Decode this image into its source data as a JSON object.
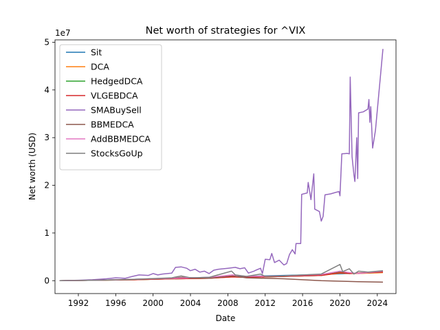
{
  "chart_data": {
    "type": "line",
    "title": "Net worth of strategies for ^VIX",
    "xlabel": "Date",
    "ylabel": "Net worth (USD)",
    "y_offset_label": "1e7",
    "xlim": [
      1989.5,
      2026.0
    ],
    "ylim": [
      -0.27,
      5.05
    ],
    "y_unit_multiplier": 10000000,
    "x_ticks": [
      1992,
      1996,
      2000,
      2004,
      2008,
      2012,
      2016,
      2020,
      2024
    ],
    "x_tick_labels": [
      "1992",
      "1996",
      "2000",
      "2004",
      "2008",
      "2012",
      "2016",
      "2020",
      "2024"
    ],
    "y_ticks": [
      0,
      1,
      2,
      3,
      4,
      5
    ],
    "y_tick_labels": [
      "0",
      "1",
      "2",
      "3",
      "4",
      "5"
    ],
    "grid": false,
    "legend_position": "upper-left",
    "series": [
      {
        "name": "Sit",
        "color": "#1f77b4",
        "points": [
          [
            1990.0,
            0.0
          ],
          [
            1994,
            0.01
          ],
          [
            1998,
            0.03
          ],
          [
            2002,
            0.05
          ],
          [
            2006,
            0.07
          ],
          [
            2010,
            0.09
          ],
          [
            2014,
            0.11
          ],
          [
            2018,
            0.13
          ],
          [
            2022,
            0.16
          ],
          [
            2024.6,
            0.18
          ]
        ]
      },
      {
        "name": "DCA",
        "color": "#ff7f0e",
        "points": [
          [
            1990.0,
            0.0
          ],
          [
            1994,
            0.01
          ],
          [
            1998,
            0.02
          ],
          [
            2002,
            0.04
          ],
          [
            2006,
            0.05
          ],
          [
            2008.5,
            0.08
          ],
          [
            2010,
            0.07
          ],
          [
            2014,
            0.09
          ],
          [
            2018,
            0.11
          ],
          [
            2020,
            0.16
          ],
          [
            2021,
            0.15
          ],
          [
            2022,
            0.15
          ],
          [
            2024.6,
            0.17
          ]
        ]
      },
      {
        "name": "HedgedDCA",
        "color": "#2ca02c",
        "points": [
          [
            1990.0,
            0.0
          ],
          [
            1994,
            0.01
          ],
          [
            1998,
            0.02
          ],
          [
            2002,
            0.04
          ],
          [
            2006,
            0.05
          ],
          [
            2008.5,
            0.09
          ],
          [
            2010,
            0.07
          ],
          [
            2014,
            0.09
          ],
          [
            2018,
            0.11
          ],
          [
            2020,
            0.18
          ],
          [
            2021,
            0.15
          ],
          [
            2022,
            0.16
          ],
          [
            2024.6,
            0.18
          ]
        ]
      },
      {
        "name": "VLGEBDCA",
        "color": "#d62728",
        "points": [
          [
            1990.0,
            0.0
          ],
          [
            1994,
            0.01
          ],
          [
            1998,
            0.02
          ],
          [
            2002,
            0.04
          ],
          [
            2006,
            0.05
          ],
          [
            2008.5,
            0.08
          ],
          [
            2010,
            0.07
          ],
          [
            2014,
            0.09
          ],
          [
            2018,
            0.11
          ],
          [
            2020,
            0.17
          ],
          [
            2021,
            0.15
          ],
          [
            2022,
            0.16
          ],
          [
            2024.6,
            0.18
          ]
        ]
      },
      {
        "name": "SMABuySell",
        "color": "#9467bd",
        "points": [
          [
            1990.0,
            0.0
          ],
          [
            1992.0,
            0.01
          ],
          [
            1993.5,
            0.02
          ],
          [
            1995.0,
            0.04
          ],
          [
            1996.0,
            0.06
          ],
          [
            1997.0,
            0.05
          ],
          [
            1997.8,
            0.09
          ],
          [
            1998.5,
            0.12
          ],
          [
            1999.5,
            0.11
          ],
          [
            2000.0,
            0.15
          ],
          [
            2000.5,
            0.12
          ],
          [
            2001.0,
            0.14
          ],
          [
            2002.0,
            0.16
          ],
          [
            2002.4,
            0.28
          ],
          [
            2003.0,
            0.29
          ],
          [
            2003.6,
            0.26
          ],
          [
            2004.0,
            0.21
          ],
          [
            2004.5,
            0.24
          ],
          [
            2005.0,
            0.18
          ],
          [
            2005.5,
            0.2
          ],
          [
            2006.0,
            0.15
          ],
          [
            2006.5,
            0.22
          ],
          [
            2007.0,
            0.24
          ],
          [
            2008.0,
            0.26
          ],
          [
            2008.8,
            0.28
          ],
          [
            2009.3,
            0.25
          ],
          [
            2009.8,
            0.27
          ],
          [
            2010.2,
            0.16
          ],
          [
            2010.8,
            0.2
          ],
          [
            2011.0,
            0.22
          ],
          [
            2011.5,
            0.26
          ],
          [
            2011.7,
            0.15
          ],
          [
            2012.0,
            0.45
          ],
          [
            2012.5,
            0.44
          ],
          [
            2012.7,
            0.57
          ],
          [
            2013.0,
            0.38
          ],
          [
            2013.5,
            0.43
          ],
          [
            2014.0,
            0.33
          ],
          [
            2014.3,
            0.36
          ],
          [
            2014.6,
            0.55
          ],
          [
            2014.9,
            0.65
          ],
          [
            2015.2,
            0.56
          ],
          [
            2015.3,
            0.78
          ],
          [
            2015.8,
            0.78
          ],
          [
            2015.9,
            1.81
          ],
          [
            2016.5,
            1.84
          ],
          [
            2016.6,
            2.06
          ],
          [
            2016.9,
            1.7
          ],
          [
            2017.2,
            2.24
          ],
          [
            2017.3,
            1.5
          ],
          [
            2017.8,
            1.45
          ],
          [
            2018.0,
            1.25
          ],
          [
            2018.2,
            1.35
          ],
          [
            2018.4,
            1.8
          ],
          [
            2019.0,
            1.82
          ],
          [
            2019.5,
            1.85
          ],
          [
            2019.9,
            1.87
          ],
          [
            2020.0,
            1.78
          ],
          [
            2020.2,
            2.66
          ],
          [
            2020.8,
            2.67
          ],
          [
            2021.0,
            2.66
          ],
          [
            2021.1,
            4.27
          ],
          [
            2021.3,
            2.6
          ],
          [
            2021.5,
            2.22
          ],
          [
            2021.6,
            2.08
          ],
          [
            2021.8,
            3.0
          ],
          [
            2021.9,
            2.14
          ],
          [
            2022.0,
            3.52
          ],
          [
            2022.5,
            3.54
          ],
          [
            2023.0,
            3.6
          ],
          [
            2023.1,
            3.8
          ],
          [
            2023.2,
            3.32
          ],
          [
            2023.3,
            3.65
          ],
          [
            2023.5,
            2.78
          ],
          [
            2023.8,
            3.15
          ],
          [
            2024.6,
            4.86
          ]
        ]
      },
      {
        "name": "BBMEDCA",
        "color": "#8c564b",
        "points": [
          [
            1990.0,
            0.0
          ],
          [
            1994,
            0.01
          ],
          [
            1998,
            0.03
          ],
          [
            2002,
            0.05
          ],
          [
            2003,
            0.07
          ],
          [
            2006,
            0.05
          ],
          [
            2008.5,
            0.1
          ],
          [
            2010,
            0.06
          ],
          [
            2012,
            0.05
          ],
          [
            2014,
            0.04
          ],
          [
            2016,
            0.02
          ],
          [
            2018,
            0.0
          ],
          [
            2020,
            -0.01
          ],
          [
            2022,
            -0.02
          ],
          [
            2024.6,
            -0.03
          ]
        ]
      },
      {
        "name": "AddBBMEDCA",
        "color": "#e377c2",
        "points": [
          [
            1990.0,
            0.0
          ],
          [
            1994,
            0.01
          ],
          [
            1998,
            0.03
          ],
          [
            2002,
            0.05
          ],
          [
            2006,
            0.07
          ],
          [
            2008.5,
            0.12
          ],
          [
            2010,
            0.09
          ],
          [
            2014,
            0.1
          ],
          [
            2018,
            0.13
          ],
          [
            2020,
            0.2
          ],
          [
            2021,
            0.17
          ],
          [
            2022,
            0.15
          ],
          [
            2024.6,
            0.2
          ]
        ]
      },
      {
        "name": "StocksGoUp",
        "color": "#7f7f7f",
        "points": [
          [
            1990.0,
            0.0
          ],
          [
            1994,
            0.01
          ],
          [
            1998,
            0.03
          ],
          [
            2002,
            0.06
          ],
          [
            2003,
            0.1
          ],
          [
            2004,
            0.06
          ],
          [
            2006,
            0.07
          ],
          [
            2008.4,
            0.2
          ],
          [
            2008.8,
            0.12
          ],
          [
            2010,
            0.09
          ],
          [
            2011.5,
            0.14
          ],
          [
            2012,
            0.09
          ],
          [
            2014,
            0.1
          ],
          [
            2016,
            0.12
          ],
          [
            2018,
            0.14
          ],
          [
            2020.0,
            0.34
          ],
          [
            2020.3,
            0.19
          ],
          [
            2021,
            0.25
          ],
          [
            2021.5,
            0.14
          ],
          [
            2022,
            0.2
          ],
          [
            2023,
            0.18
          ],
          [
            2024.6,
            0.21
          ]
        ]
      }
    ]
  }
}
